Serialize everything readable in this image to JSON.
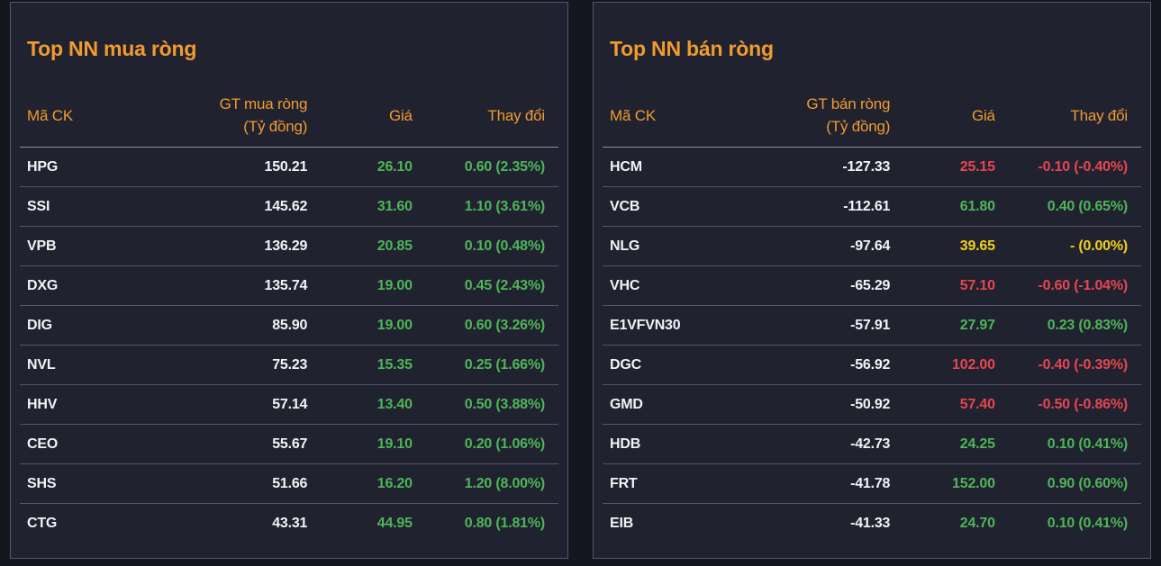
{
  "colors": {
    "bg_outer": "#161621",
    "bg_panel": "#212230",
    "border": "#55556a",
    "sep_row": "#53536a",
    "sep_header": "#8e8ea6",
    "orange": "#f09b2f",
    "white": "#f2f3f5",
    "green": "#4db658",
    "red": "#e5464f",
    "yellow": "#f0d01a"
  },
  "panels": [
    {
      "title": "Top NN mua ròng",
      "columns": {
        "code": "Mã CK",
        "value_line1": "GT mua ròng",
        "value_line2": "(Tỷ đồng)",
        "price": "Giá",
        "change": "Thay đổi"
      },
      "rows": [
        {
          "code": "HPG",
          "value": "150.21",
          "price": "26.10",
          "change": "0.60 (2.35%)",
          "trend": "up"
        },
        {
          "code": "SSI",
          "value": "145.62",
          "price": "31.60",
          "change": "1.10 (3.61%)",
          "trend": "up"
        },
        {
          "code": "VPB",
          "value": "136.29",
          "price": "20.85",
          "change": "0.10 (0.48%)",
          "trend": "up"
        },
        {
          "code": "DXG",
          "value": "135.74",
          "price": "19.00",
          "change": "0.45 (2.43%)",
          "trend": "up"
        },
        {
          "code": "DIG",
          "value": "85.90",
          "price": "19.00",
          "change": "0.60 (3.26%)",
          "trend": "up"
        },
        {
          "code": "NVL",
          "value": "75.23",
          "price": "15.35",
          "change": "0.25 (1.66%)",
          "trend": "up"
        },
        {
          "code": "HHV",
          "value": "57.14",
          "price": "13.40",
          "change": "0.50 (3.88%)",
          "trend": "up"
        },
        {
          "code": "CEO",
          "value": "55.67",
          "price": "19.10",
          "change": "0.20 (1.06%)",
          "trend": "up"
        },
        {
          "code": "SHS",
          "value": "51.66",
          "price": "16.20",
          "change": "1.20 (8.00%)",
          "trend": "up"
        },
        {
          "code": "CTG",
          "value": "43.31",
          "price": "44.95",
          "change": "0.80 (1.81%)",
          "trend": "up"
        }
      ]
    },
    {
      "title": "Top NN bán ròng",
      "columns": {
        "code": "Mã CK",
        "value_line1": "GT bán ròng",
        "value_line2": "(Tỷ đồng)",
        "price": "Giá",
        "change": "Thay đổi"
      },
      "rows": [
        {
          "code": "HCM",
          "value": "-127.33",
          "price": "25.15",
          "change": "-0.10 (-0.40%)",
          "trend": "down"
        },
        {
          "code": "VCB",
          "value": "-112.61",
          "price": "61.80",
          "change": "0.40 (0.65%)",
          "trend": "up"
        },
        {
          "code": "NLG",
          "value": "-97.64",
          "price": "39.65",
          "change": "- (0.00%)",
          "trend": "ref"
        },
        {
          "code": "VHC",
          "value": "-65.29",
          "price": "57.10",
          "change": "-0.60 (-1.04%)",
          "trend": "down"
        },
        {
          "code": "E1VFVN30",
          "value": "-57.91",
          "price": "27.97",
          "change": "0.23 (0.83%)",
          "trend": "up"
        },
        {
          "code": "DGC",
          "value": "-56.92",
          "price": "102.00",
          "change": "-0.40 (-0.39%)",
          "trend": "down"
        },
        {
          "code": "GMD",
          "value": "-50.92",
          "price": "57.40",
          "change": "-0.50 (-0.86%)",
          "trend": "down"
        },
        {
          "code": "HDB",
          "value": "-42.73",
          "price": "24.25",
          "change": "0.10 (0.41%)",
          "trend": "up"
        },
        {
          "code": "FRT",
          "value": "-41.78",
          "price": "152.00",
          "change": "0.90 (0.60%)",
          "trend": "up"
        },
        {
          "code": "EIB",
          "value": "-41.33",
          "price": "24.70",
          "change": "0.10 (0.41%)",
          "trend": "up"
        }
      ]
    }
  ]
}
